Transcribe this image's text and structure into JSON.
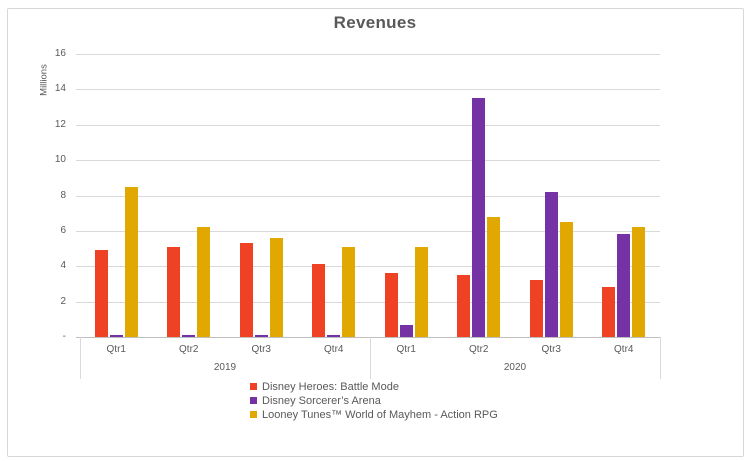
{
  "window": {
    "background": "#ffffff",
    "frame_border_color": "#d8d8d8"
  },
  "chart_data": {
    "type": "bar",
    "title": "Revenues",
    "ylabel": "Millions",
    "ylim": [
      0,
      16
    ],
    "ytick_step": 2,
    "ytick_labels_top_down": [
      "16",
      "14",
      "12",
      "10",
      "8",
      "6",
      "4",
      "2",
      "-"
    ],
    "grid": true,
    "legend_position": "bottom",
    "colors": {
      "gridline": "#d9d9d9",
      "axis_line": "#bfbfbf",
      "text": "#595959",
      "title": "#595959"
    },
    "groups": [
      {
        "year": "2019",
        "quarters": [
          "Qtr1",
          "Qtr2",
          "Qtr3",
          "Qtr4"
        ]
      },
      {
        "year": "2020",
        "quarters": [
          "Qtr1",
          "Qtr2",
          "Qtr3",
          "Qtr4"
        ]
      }
    ],
    "series": [
      {
        "name": "Disney Heroes: Battle Mode",
        "color": "#ef4123",
        "values": [
          4.9,
          5.1,
          5.3,
          4.1,
          3.6,
          3.5,
          3.2,
          2.8
        ]
      },
      {
        "name": "Disney Sorcerer’s Arena",
        "color": "#7432a5",
        "values": [
          0.1,
          0.1,
          0.1,
          0.1,
          0.7,
          13.5,
          8.2,
          5.8
        ]
      },
      {
        "name": "Looney Tunes™ World of Mayhem - Action RPG",
        "color": "#e0a800",
        "values": [
          8.5,
          6.2,
          5.6,
          5.1,
          5.1,
          6.8,
          6.5,
          6.2
        ]
      }
    ]
  }
}
